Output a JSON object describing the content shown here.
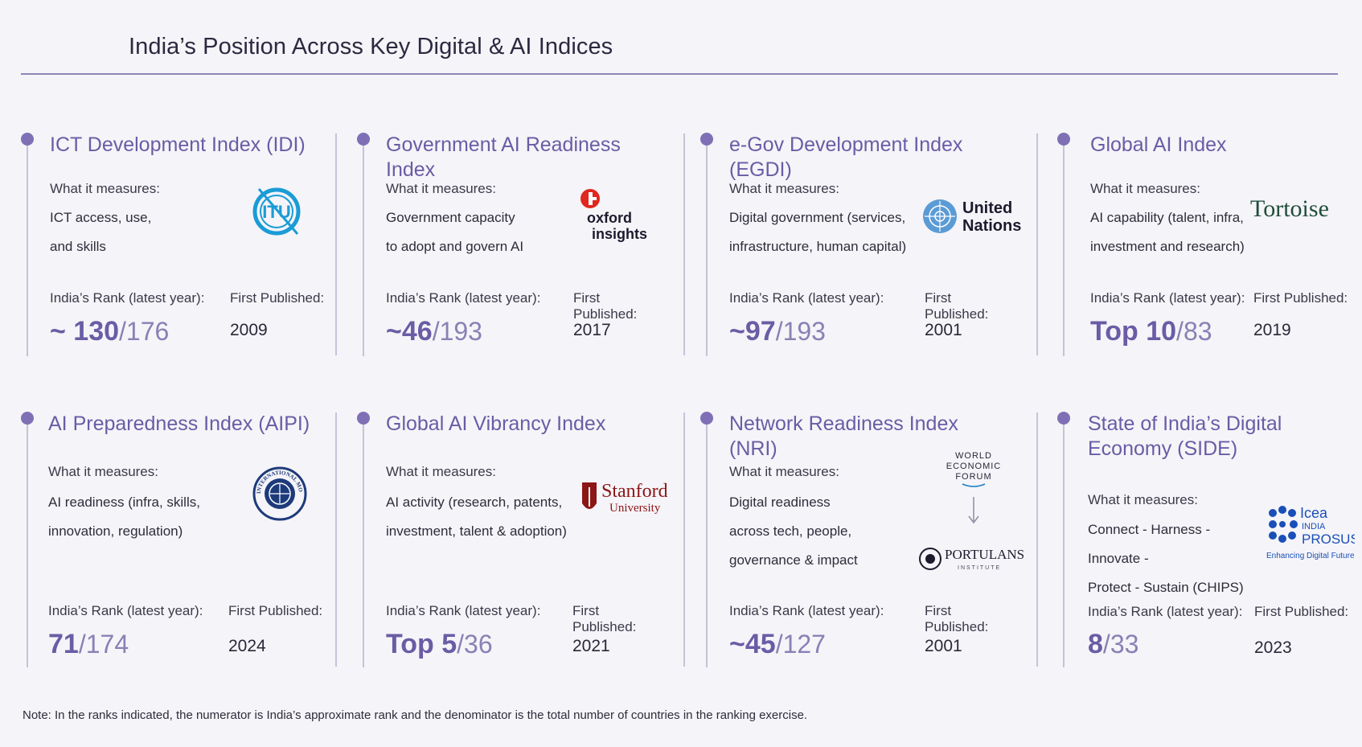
{
  "title": "India’s Position Across Key Digital & AI Indices",
  "labels": {
    "what": "What it measures:",
    "rank": "India’s Rank (latest year):",
    "first": "First Published:"
  },
  "cards": [
    {
      "title": "ICT Development Index (IDI)",
      "measures": [
        "ICT access, use,",
        "and skills"
      ],
      "rank_num": "~ 130",
      "rank_den": "/176",
      "first": "2009",
      "logo_text": "ITU"
    },
    {
      "title": "Government AI Readiness Index",
      "measures": [
        "Government capacity",
        "to adopt and govern AI"
      ],
      "rank_num": "~46",
      "rank_den": "/193",
      "first": "2017",
      "logo_text": [
        "oxford",
        "insights"
      ]
    },
    {
      "title": "e-Gov Development Index (EGDI)",
      "measures": [
        "Digital government (services,",
        "infrastructure, human capital)"
      ],
      "rank_num": "~97",
      "rank_den": "/193",
      "first": "2001",
      "logo_text": [
        "United",
        "Nations"
      ]
    },
    {
      "title": "Global AI Index",
      "measures": [
        "AI capability (talent, infra,",
        "investment and research)"
      ],
      "rank_num": "Top 10",
      "rank_den": "/83",
      "first": "2019",
      "logo_text": "Tortoise"
    },
    {
      "title": "AI Preparedness Index (AIPI)",
      "measures": [
        "AI readiness (infra, skills,",
        "innovation, regulation)"
      ],
      "rank_num": "71",
      "rank_den": "/174",
      "first": "2024",
      "logo_text": "INTERNATIONAL MONETARY FUND"
    },
    {
      "title": "Global AI Vibrancy Index",
      "measures": [
        "AI activity (research, patents,",
        "investment, talent & adoption)"
      ],
      "rank_num": "Top 5",
      "rank_den": "/36",
      "first": "2021",
      "logo_text": [
        "Stanford",
        "University"
      ]
    },
    {
      "title": "Network Readiness Index (NRI)",
      "measures": [
        "Digital readiness",
        "across tech, people,",
        "governance & impact"
      ],
      "rank_num": "~45",
      "rank_den": "/127",
      "first": "2001",
      "logo_text": [
        "WORLD",
        "ECONOMIC",
        "FORUM",
        "PORTULANS",
        "INSTITUTE"
      ]
    },
    {
      "title": "State of India’s Digital Economy (SIDE)",
      "measures": [
        "Connect - Harness - Innovate -",
        "Protect - Sustain (CHIPS)"
      ],
      "rank_num": "8",
      "rank_den": "/33",
      "first": "2023",
      "logo_text": [
        "Icea",
        "INDIA",
        "PROSUS",
        "Enhancing Digital Future"
      ]
    }
  ],
  "note": "Note: In the ranks indicated, the numerator is India’s approximate rank and the denominator is the total number of countries in the ranking exercise.",
  "colors": {
    "accent": "#6a5ca5",
    "dot": "#7f70b6",
    "rule": "#8f86b5"
  }
}
